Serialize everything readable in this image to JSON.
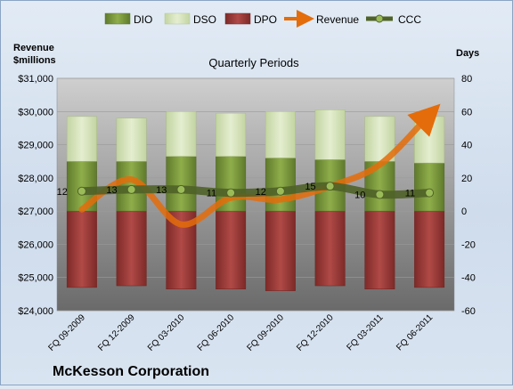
{
  "chart_data": {
    "type": "bar",
    "title": "Quarterly Periods",
    "company": "McKesson Corporation",
    "left_axis": {
      "label_line1": "Revenue",
      "label_line2": "$millions",
      "min": 24000,
      "max": 31000,
      "step": 1000,
      "tick_labels": [
        "$24,000",
        "$25,000",
        "$26,000",
        "$27,000",
        "$28,000",
        "$29,000",
        "$30,000",
        "$31,000"
      ]
    },
    "right_axis": {
      "label": "Days",
      "min": -60,
      "max": 80,
      "step": 20,
      "tick_labels": [
        "-60",
        "-40",
        "-20",
        "0",
        "20",
        "40",
        "60",
        "80"
      ]
    },
    "categories": [
      "FQ 09-2009",
      "FQ 12-2009",
      "FQ 03-2010",
      "FQ 06-2010",
      "FQ 09-2010",
      "FQ 12-2010",
      "FQ 03-2011",
      "FQ 06-2011"
    ],
    "legend": [
      {
        "name": "DIO",
        "kind": "bar",
        "color": "#77933c"
      },
      {
        "name": "DSO",
        "kind": "bar",
        "color": "#d7e4bd"
      },
      {
        "name": "DPO",
        "kind": "bar",
        "color": "#953735"
      },
      {
        "name": "Revenue",
        "kind": "line",
        "color": "#e46c0a"
      },
      {
        "name": "CCC",
        "kind": "line",
        "color": "#4f6228"
      }
    ],
    "series": [
      {
        "name": "DIO",
        "axis": "right",
        "values": [
          30,
          30,
          33,
          33,
          32,
          31,
          30,
          29
        ]
      },
      {
        "name": "DSO",
        "axis": "right",
        "values": [
          27,
          26,
          27,
          26,
          28,
          30,
          27,
          28
        ]
      },
      {
        "name": "DPO",
        "axis": "right",
        "values": [
          -46,
          -45,
          -47,
          -47,
          -48,
          -45,
          -47,
          -46
        ]
      },
      {
        "name": "Revenue",
        "axis": "left",
        "values": [
          27050,
          27950,
          26600,
          27400,
          27350,
          27750,
          28400,
          29900
        ]
      },
      {
        "name": "CCC",
        "axis": "right",
        "values": [
          12,
          13,
          13,
          11,
          12,
          15,
          10,
          11
        ]
      }
    ],
    "ccc_labels": [
      "12",
      "13",
      "13",
      "11",
      "12",
      "15",
      "10",
      "11"
    ],
    "colors": {
      "plot_top": "#c9c9c9",
      "plot_bottom": "#6d6d6d",
      "dio": "#77933c",
      "dso": "#d7e4bd",
      "dpo": "#953735",
      "revenue": "#e46c0a",
      "ccc": "#4f6228",
      "ccc_marker": "#9bbb59"
    }
  }
}
